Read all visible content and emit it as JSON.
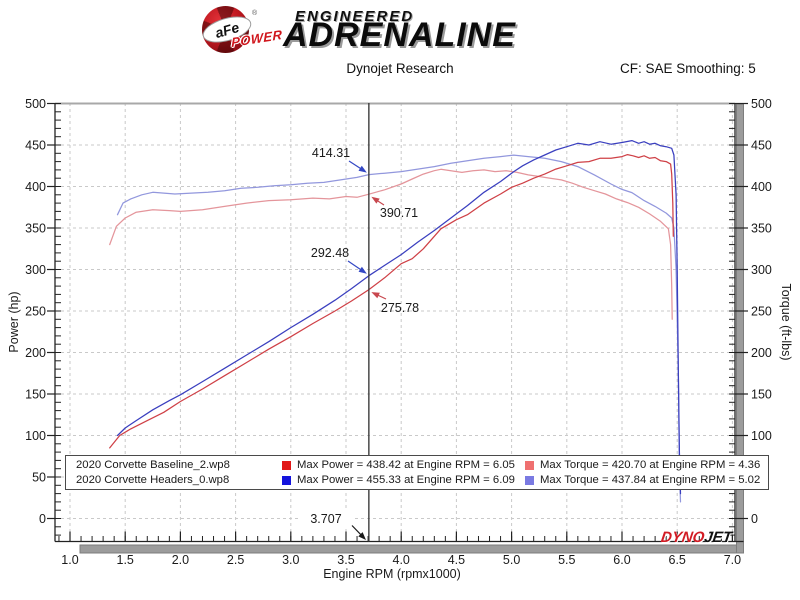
{
  "header": {
    "brand": {
      "ball_text": "aFe",
      "reg": "®",
      "power": "POWER",
      "engineered": "ENGINEERED",
      "adrenaline": "ADRENALINE"
    },
    "subtitle": "Dynojet Research",
    "correction": "CF: SAE Smoothing: 5"
  },
  "chart_data": {
    "type": "line",
    "title": "",
    "xlabel": "Engine RPM (rpmx1000)",
    "ylabel_left": "Power (hp)",
    "ylabel_right": "Torque (ft-lbs)",
    "xlim": [
      1.0,
      7.0
    ],
    "ylim_left": [
      0,
      500
    ],
    "ylim_right": [
      0,
      500
    ],
    "grid": true,
    "x_ticks": [
      "1.0",
      "1.5",
      "2.0",
      "2.5",
      "3.0",
      "3.5",
      "4.0",
      "4.5",
      "5.0",
      "5.5",
      "6.0",
      "6.5",
      "7.0"
    ],
    "y_ticks": [
      "0",
      "50",
      "100",
      "150",
      "200",
      "250",
      "300",
      "350",
      "400",
      "450",
      "500"
    ],
    "cursor": {
      "rpm": 3.707,
      "label": "3.707",
      "readouts": [
        {
          "series": "torque_headers",
          "label": "414.31",
          "color": "#3347c4"
        },
        {
          "series": "torque_baseline",
          "label": "390.71",
          "color": "#c8474e"
        },
        {
          "series": "power_headers",
          "label": "292.48",
          "color": "#3347c4"
        },
        {
          "series": "power_baseline",
          "label": "275.78",
          "color": "#c8474e"
        }
      ]
    },
    "series": [
      {
        "name": "torque_baseline",
        "axis": "right",
        "color": "#e4959b",
        "points": [
          [
            1.36,
            330
          ],
          [
            1.42,
            352
          ],
          [
            1.5,
            362
          ],
          [
            1.6,
            369
          ],
          [
            1.75,
            372
          ],
          [
            1.9,
            371
          ],
          [
            2.0,
            370
          ],
          [
            2.2,
            372
          ],
          [
            2.4,
            376
          ],
          [
            2.6,
            380
          ],
          [
            2.8,
            383
          ],
          [
            3.0,
            384
          ],
          [
            3.2,
            386
          ],
          [
            3.35,
            385
          ],
          [
            3.5,
            388
          ],
          [
            3.6,
            387
          ],
          [
            3.707,
            390.71
          ],
          [
            3.85,
            396
          ],
          [
            4.0,
            403
          ],
          [
            4.1,
            409
          ],
          [
            4.2,
            415
          ],
          [
            4.3,
            419
          ],
          [
            4.36,
            420.7
          ],
          [
            4.45,
            419
          ],
          [
            4.55,
            417
          ],
          [
            4.65,
            419
          ],
          [
            4.75,
            420
          ],
          [
            4.85,
            418
          ],
          [
            4.95,
            419
          ],
          [
            5.05,
            417
          ],
          [
            5.15,
            414
          ],
          [
            5.25,
            412
          ],
          [
            5.35,
            410
          ],
          [
            5.45,
            408
          ],
          [
            5.55,
            404
          ],
          [
            5.65,
            399
          ],
          [
            5.75,
            395
          ],
          [
            5.85,
            391
          ],
          [
            5.95,
            385
          ],
          [
            6.05,
            380.6
          ],
          [
            6.15,
            375
          ],
          [
            6.25,
            367
          ],
          [
            6.35,
            358
          ],
          [
            6.42,
            349
          ],
          [
            6.44,
            330
          ],
          [
            6.45,
            280
          ],
          [
            6.455,
            240
          ]
        ]
      },
      {
        "name": "torque_headers",
        "axis": "right",
        "color": "#9297dd",
        "points": [
          [
            1.43,
            366
          ],
          [
            1.48,
            380
          ],
          [
            1.55,
            385
          ],
          [
            1.65,
            390
          ],
          [
            1.75,
            393
          ],
          [
            1.85,
            392
          ],
          [
            1.95,
            391
          ],
          [
            2.1,
            392
          ],
          [
            2.25,
            393
          ],
          [
            2.4,
            395
          ],
          [
            2.55,
            398
          ],
          [
            2.7,
            399
          ],
          [
            2.85,
            401
          ],
          [
            3.0,
            402
          ],
          [
            3.15,
            404
          ],
          [
            3.3,
            405
          ],
          [
            3.45,
            408
          ],
          [
            3.6,
            411
          ],
          [
            3.707,
            414.31
          ],
          [
            3.85,
            416
          ],
          [
            4.0,
            418
          ],
          [
            4.15,
            421
          ],
          [
            4.3,
            424
          ],
          [
            4.45,
            428
          ],
          [
            4.6,
            431
          ],
          [
            4.75,
            434
          ],
          [
            4.9,
            436
          ],
          [
            5.02,
            437.84
          ],
          [
            5.15,
            436
          ],
          [
            5.3,
            434
          ],
          [
            5.45,
            430
          ],
          [
            5.6,
            424
          ],
          [
            5.75,
            414
          ],
          [
            5.9,
            403
          ],
          [
            6.0,
            396.5
          ],
          [
            6.09,
            392.7
          ],
          [
            6.2,
            383
          ],
          [
            6.3,
            376
          ],
          [
            6.4,
            368
          ],
          [
            6.45,
            362
          ],
          [
            6.47,
            350
          ],
          [
            6.49,
            300
          ],
          [
            6.51,
            180
          ],
          [
            6.52,
            60
          ],
          [
            6.53,
            20
          ]
        ]
      },
      {
        "name": "power_baseline",
        "axis": "left",
        "color": "#cf4046",
        "points": [
          [
            1.36,
            85
          ],
          [
            1.45,
            100
          ],
          [
            1.55,
            108
          ],
          [
            1.7,
            118
          ],
          [
            1.85,
            128
          ],
          [
            2.0,
            141
          ],
          [
            2.2,
            156
          ],
          [
            2.4,
            172
          ],
          [
            2.6,
            188
          ],
          [
            2.8,
            204
          ],
          [
            3.0,
            219
          ],
          [
            3.2,
            235
          ],
          [
            3.4,
            250
          ],
          [
            3.55,
            262
          ],
          [
            3.707,
            275.78
          ],
          [
            3.85,
            290
          ],
          [
            4.0,
            307
          ],
          [
            4.1,
            313
          ],
          [
            4.2,
            325
          ],
          [
            4.36,
            349
          ],
          [
            4.5,
            360
          ],
          [
            4.6,
            366
          ],
          [
            4.75,
            380
          ],
          [
            4.9,
            391
          ],
          [
            5.0,
            399
          ],
          [
            5.1,
            404
          ],
          [
            5.2,
            410
          ],
          [
            5.3,
            415
          ],
          [
            5.4,
            421
          ],
          [
            5.5,
            425
          ],
          [
            5.6,
            429
          ],
          [
            5.7,
            430
          ],
          [
            5.8,
            434
          ],
          [
            5.9,
            434
          ],
          [
            6.0,
            436
          ],
          [
            6.05,
            438.42
          ],
          [
            6.1,
            437
          ],
          [
            6.15,
            435
          ],
          [
            6.2,
            437
          ],
          [
            6.25,
            434
          ],
          [
            6.3,
            435
          ],
          [
            6.35,
            431
          ],
          [
            6.4,
            430
          ],
          [
            6.44,
            427
          ],
          [
            6.45,
            415
          ],
          [
            6.46,
            380
          ],
          [
            6.465,
            340
          ]
        ]
      },
      {
        "name": "power_headers",
        "axis": "left",
        "color": "#3a3fbf",
        "points": [
          [
            1.43,
            100
          ],
          [
            1.5,
            109
          ],
          [
            1.6,
            118
          ],
          [
            1.75,
            131
          ],
          [
            1.9,
            142
          ],
          [
            2.0,
            149
          ],
          [
            2.2,
            165
          ],
          [
            2.4,
            181
          ],
          [
            2.6,
            197
          ],
          [
            2.8,
            213
          ],
          [
            3.0,
            230
          ],
          [
            3.2,
            246
          ],
          [
            3.4,
            263
          ],
          [
            3.55,
            277
          ],
          [
            3.707,
            292.48
          ],
          [
            3.85,
            305
          ],
          [
            4.0,
            318
          ],
          [
            4.15,
            333
          ],
          [
            4.3,
            347
          ],
          [
            4.45,
            362
          ],
          [
            4.6,
            377
          ],
          [
            4.75,
            393
          ],
          [
            4.9,
            406
          ],
          [
            5.02,
            418
          ],
          [
            5.1,
            425
          ],
          [
            5.2,
            432
          ],
          [
            5.3,
            438
          ],
          [
            5.4,
            444
          ],
          [
            5.5,
            448
          ],
          [
            5.6,
            452
          ],
          [
            5.7,
            450
          ],
          [
            5.8,
            454
          ],
          [
            5.9,
            451
          ],
          [
            6.0,
            453
          ],
          [
            6.09,
            455.33
          ],
          [
            6.15,
            452
          ],
          [
            6.2,
            454
          ],
          [
            6.25,
            451
          ],
          [
            6.3,
            452
          ],
          [
            6.35,
            449
          ],
          [
            6.4,
            448
          ],
          [
            6.45,
            446
          ],
          [
            6.47,
            438
          ],
          [
            6.49,
            390
          ],
          [
            6.5,
            300
          ],
          [
            6.51,
            180
          ],
          [
            6.52,
            80
          ],
          [
            6.53,
            30
          ]
        ]
      }
    ]
  },
  "legend": {
    "rows": [
      {
        "file": "2020 Corvette Baseline_2.wp8",
        "power_color": "#e11818",
        "power_text": "Max Power = 438.42 at Engine RPM = 6.05",
        "torque_color": "#ef7070",
        "torque_text": "Max Torque = 420.70 at Engine RPM = 4.36"
      },
      {
        "file": "2020 Corvette Headers_0.wp8",
        "power_color": "#1414dd",
        "power_text": "Max Power = 455.33 at Engine RPM = 6.09",
        "torque_color": "#7a7ae2",
        "torque_text": "Max Torque = 437.84 at Engine RPM = 5.02"
      }
    ]
  },
  "footer_logo": {
    "dyno": "DYNO",
    "jet": "JET"
  }
}
